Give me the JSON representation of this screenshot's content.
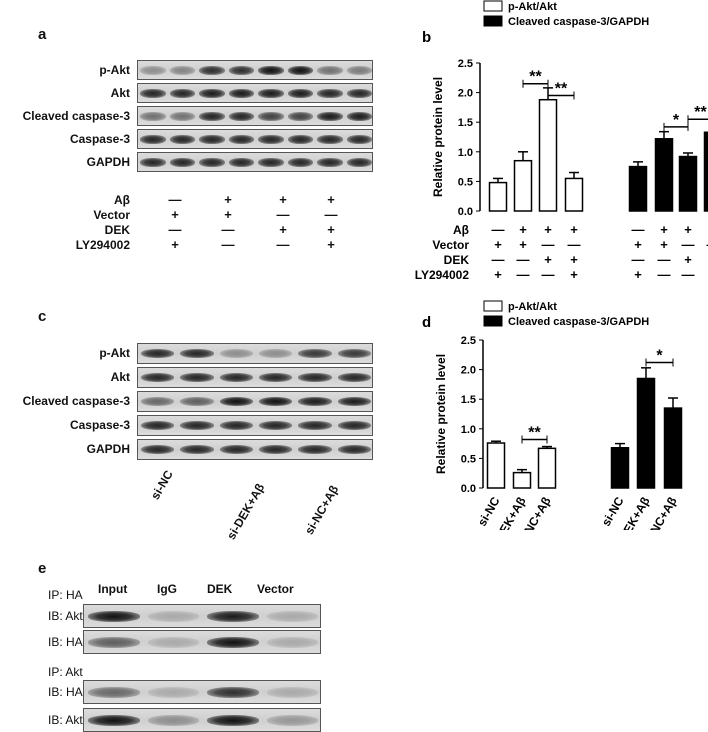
{
  "panels": {
    "a": {
      "letter": "a",
      "rows": [
        "p-Akt",
        "Akt",
        "Cleaved caspase-3",
        "Caspase-3",
        "GAPDH"
      ],
      "bands": [
        [
          0.35,
          0.4,
          0.85,
          0.85,
          1.0,
          1.0,
          0.5,
          0.45
        ],
        [
          0.9,
          0.9,
          0.95,
          0.95,
          0.95,
          0.95,
          0.9,
          0.9
        ],
        [
          0.5,
          0.5,
          0.9,
          0.9,
          0.75,
          0.75,
          0.95,
          0.95
        ],
        [
          0.9,
          0.9,
          0.9,
          0.9,
          0.9,
          0.9,
          0.9,
          0.9
        ],
        [
          0.9,
          0.9,
          0.9,
          0.9,
          0.9,
          0.9,
          0.9,
          0.9
        ]
      ],
      "conditions": [
        {
          "label": "Aβ",
          "values": [
            "—",
            "+",
            "+",
            "+"
          ]
        },
        {
          "label": "Vector",
          "values": [
            "+",
            "+",
            "—",
            "—"
          ]
        },
        {
          "label": "DEK",
          "values": [
            "—",
            "—",
            "+",
            "+"
          ]
        },
        {
          "label": "LY294002",
          "values": [
            "+",
            "—",
            "—",
            "+"
          ]
        }
      ]
    },
    "c": {
      "letter": "c",
      "rows": [
        "p-Akt",
        "Akt",
        "Cleaved caspase-3",
        "Caspase-3",
        "GAPDH"
      ],
      "bands": [
        [
          0.9,
          0.9,
          0.35,
          0.35,
          0.8,
          0.8
        ],
        [
          0.9,
          0.9,
          0.9,
          0.9,
          0.9,
          0.9
        ],
        [
          0.55,
          0.6,
          1.0,
          1.0,
          0.95,
          0.95
        ],
        [
          0.9,
          0.9,
          0.9,
          0.9,
          0.9,
          0.9
        ],
        [
          0.9,
          0.9,
          0.9,
          0.9,
          0.9,
          0.9
        ]
      ],
      "lanes": [
        "si-NC",
        "si-DEK+Aβ",
        "si-NC+Aβ"
      ]
    },
    "e": {
      "letter": "e",
      "columns": [
        "Input",
        "IgG",
        "DEK",
        "Vector"
      ],
      "groups": [
        {
          "ip": "IP: HA",
          "rows": [
            {
              "label": "IB: Akt",
              "bands": [
                1.0,
                0.2,
                0.95,
                0.2
              ]
            },
            {
              "label": "IB: HA",
              "bands": [
                0.6,
                0.2,
                1.0,
                0.2
              ]
            }
          ]
        },
        {
          "ip": "IP: Akt",
          "rows": [
            {
              "label": "IB: HA",
              "bands": [
                0.55,
                0.2,
                0.85,
                0.2
              ]
            },
            {
              "label": "IB: Akt",
              "bands": [
                1.0,
                0.35,
                1.0,
                0.3
              ]
            }
          ]
        }
      ]
    }
  },
  "chart_data": [
    {
      "letter": "b",
      "type": "bar",
      "ylabel": "Relative protein level",
      "ylim": [
        0,
        2.5
      ],
      "yticks": [
        "0.0",
        "0.5",
        "1.0",
        "1.5",
        "2.0",
        "2.5"
      ],
      "legend": [
        "p-Akt/Akt",
        "Cleaved caspase-3/GAPDH"
      ],
      "legend_position": "top",
      "series": [
        {
          "name": "p-Akt/Akt",
          "color": "#ffffff",
          "values": [
            0.48,
            0.85,
            1.88,
            0.55
          ],
          "errors": [
            0.07,
            0.15,
            0.2,
            0.1
          ]
        },
        {
          "name": "Cleaved caspase-3/GAPDH",
          "color": "#000000",
          "values": [
            0.75,
            1.22,
            0.92,
            1.33
          ],
          "errors": [
            0.08,
            0.12,
            0.06,
            0.11
          ]
        }
      ],
      "conditions": [
        {
          "label": "Aβ",
          "values": [
            "—",
            "+",
            "+",
            "+",
            "—",
            "+",
            "+",
            "+"
          ]
        },
        {
          "label": "Vector",
          "values": [
            "+",
            "+",
            "—",
            "—",
            "+",
            "+",
            "—",
            "—"
          ]
        },
        {
          "label": "DEK",
          "values": [
            "—",
            "—",
            "+",
            "+",
            "—",
            "—",
            "+",
            "+"
          ]
        },
        {
          "label": "LY294002",
          "values": [
            "+",
            "—",
            "—",
            "+",
            "+",
            "—",
            "—",
            "+"
          ]
        }
      ],
      "annotations": [
        {
          "text": "**",
          "series": 0,
          "from": 1,
          "to": 2,
          "level": 2.15
        },
        {
          "text": "**",
          "series": 0,
          "from": 2,
          "to": 3,
          "level": 1.95
        },
        {
          "text": "*",
          "series": 1,
          "from": 1,
          "to": 2,
          "level": 1.42
        },
        {
          "text": "**",
          "series": 1,
          "from": 2,
          "to": 3,
          "level": 1.55
        }
      ]
    },
    {
      "letter": "d",
      "type": "bar",
      "ylabel": "Relative protein level",
      "ylim": [
        0,
        2.5
      ],
      "yticks": [
        "0.0",
        "0.5",
        "1.0",
        "1.5",
        "2.0",
        "2.5"
      ],
      "legend": [
        "p-Akt/Akt",
        "Cleaved caspase-3/GAPDH"
      ],
      "legend_position": "top",
      "categories": [
        "si-NC",
        "si-DEK+Aβ",
        "si-NC+Aβ"
      ],
      "series": [
        {
          "name": "p-Akt/Akt",
          "color": "#ffffff",
          "values": [
            0.76,
            0.26,
            0.67
          ],
          "errors": [
            0.03,
            0.05,
            0.03
          ]
        },
        {
          "name": "Cleaved caspase-3/GAPDH",
          "color": "#000000",
          "values": [
            0.68,
            1.85,
            1.35
          ],
          "errors": [
            0.07,
            0.18,
            0.17
          ]
        }
      ],
      "annotations": [
        {
          "text": "**",
          "series": 0,
          "from": 1,
          "to": 2,
          "level": 0.82
        },
        {
          "text": "*",
          "series": 1,
          "from": 1,
          "to": 2,
          "level": 2.12
        }
      ]
    }
  ]
}
